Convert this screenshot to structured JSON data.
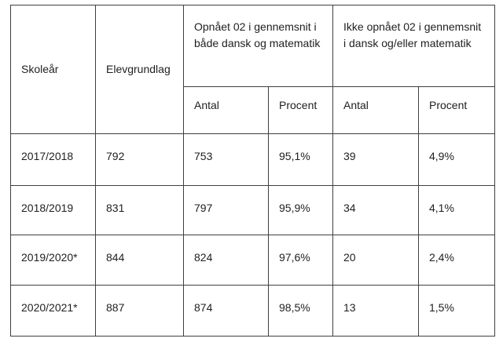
{
  "table": {
    "header": {
      "skolear": "Skoleår",
      "elevgrundlag": "Elevgrundlag",
      "group_achieved": "Opnået 02 i gennemsnit i både dansk og matematik",
      "group_not_achieved": "Ikke opnået 02 i gennemsnit i dansk og/eller matematik",
      "sub": [
        "Antal",
        "Procent",
        "Antal",
        "Procent"
      ]
    },
    "rows": [
      {
        "skolear": "2017/2018",
        "elevgrundlag": "792",
        "achieved_antal": "753",
        "achieved_procent": "95,1%",
        "not_achieved_antal": "39",
        "not_achieved_procent": "4,9%"
      },
      {
        "skolear": "2018/2019",
        "elevgrundlag": "831",
        "achieved_antal": "797",
        "achieved_procent": "95,9%",
        "not_achieved_antal": "34",
        "not_achieved_procent": "4,1%"
      },
      {
        "skolear": "2019/2020*",
        "elevgrundlag": "844",
        "achieved_antal": "824",
        "achieved_procent": "97,6%",
        "not_achieved_antal": "20",
        "not_achieved_procent": "2,4%"
      },
      {
        "skolear": "2020/2021*",
        "elevgrundlag": "887",
        "achieved_antal": "874",
        "achieved_procent": "98,5%",
        "not_achieved_antal": "13",
        "not_achieved_procent": "1,5%"
      }
    ],
    "colors": {
      "border": "#3f3f3f",
      "text": "#1f1f1f",
      "background": "#ffffff"
    }
  }
}
